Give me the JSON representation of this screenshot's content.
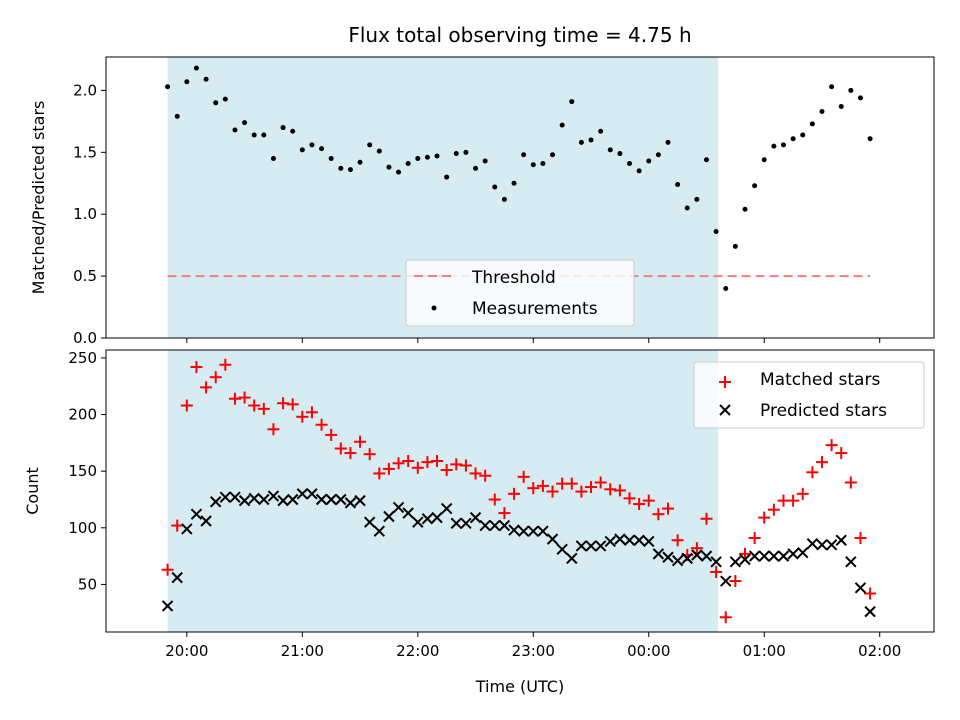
{
  "colors": {
    "span": "#add8e6",
    "threshold": "#f08080",
    "matched": "#ff0000",
    "predicted": "#000000",
    "measurement": "#000000"
  },
  "chart_data": [
    {
      "type": "scatter",
      "title": "Flux total observing time = 4.75 h",
      "xlabel": "",
      "ylabel": "Matched/Predicted stars",
      "x_unit": "hours from 19:50 UTC",
      "xlim": [
        19.3,
        26.47
      ],
      "ylim": [
        0.0,
        2.27
      ],
      "yticks": [
        "0.0",
        "0.5",
        "1.0",
        "1.5",
        "2.0"
      ],
      "shaded_span": [
        "19:50",
        "00:36"
      ],
      "threshold": 0.5,
      "legend": {
        "position": "lower-center",
        "entries": [
          "Threshold",
          "Measurements"
        ]
      },
      "series": [
        {
          "name": "Measurements",
          "marker": "dot",
          "x": [
            "19:50",
            "19:55",
            "20:00",
            "20:05",
            "20:10",
            "20:15",
            "20:20",
            "20:25",
            "20:30",
            "20:35",
            "20:40",
            "20:45",
            "20:50",
            "20:55",
            "21:00",
            "21:05",
            "21:10",
            "21:15",
            "21:20",
            "21:25",
            "21:30",
            "21:35",
            "21:40",
            "21:45",
            "21:50",
            "21:55",
            "22:00",
            "22:05",
            "22:10",
            "22:15",
            "22:20",
            "22:25",
            "22:30",
            "22:35",
            "22:40",
            "22:45",
            "22:50",
            "22:55",
            "23:00",
            "23:05",
            "23:10",
            "23:15",
            "23:20",
            "23:25",
            "23:30",
            "23:35",
            "23:40",
            "23:45",
            "23:50",
            "23:55",
            "00:00",
            "00:05",
            "00:10",
            "00:15",
            "00:20",
            "00:25",
            "00:30",
            "00:35",
            "00:40",
            "00:45",
            "00:50",
            "00:55",
            "01:00",
            "01:05",
            "01:10",
            "01:15",
            "01:20",
            "01:25",
            "01:30",
            "01:35",
            "01:40",
            "01:45",
            "01:50",
            "01:55"
          ],
          "y": [
            2.03,
            1.79,
            2.07,
            2.18,
            2.09,
            1.9,
            1.93,
            1.68,
            1.74,
            1.64,
            1.64,
            1.45,
            1.7,
            1.67,
            1.52,
            1.56,
            1.53,
            1.45,
            1.37,
            1.36,
            1.42,
            1.56,
            1.51,
            1.38,
            1.34,
            1.41,
            1.45,
            1.46,
            1.47,
            1.3,
            1.49,
            1.5,
            1.37,
            1.43,
            1.22,
            1.12,
            1.25,
            1.48,
            1.4,
            1.41,
            1.48,
            1.72,
            1.91,
            1.58,
            1.6,
            1.67,
            1.52,
            1.49,
            1.41,
            1.35,
            1.43,
            1.48,
            1.58,
            1.24,
            1.05,
            1.12,
            1.44,
            0.86,
            0.4,
            0.74,
            1.04,
            1.23,
            1.44,
            1.55,
            1.56,
            1.61,
            1.64,
            1.73,
            1.83,
            2.03,
            1.87,
            2.0,
            1.94,
            1.61
          ]
        }
      ]
    },
    {
      "type": "scatter",
      "title": "",
      "xlabel": "Time (UTC)",
      "ylabel": "Count",
      "xlim": [
        19.3,
        26.47
      ],
      "ylim": [
        8,
        257
      ],
      "yticks": [
        "50",
        "100",
        "150",
        "200",
        "250"
      ],
      "xticks": [
        "20:00",
        "21:00",
        "22:00",
        "23:00",
        "00:00",
        "01:00",
        "02:00"
      ],
      "shaded_span": [
        "19:50",
        "00:36"
      ],
      "legend": {
        "position": "top-right",
        "entries": [
          "Matched stars",
          "Predicted stars"
        ]
      },
      "series": [
        {
          "name": "Matched stars",
          "marker": "plus",
          "x": [
            "19:50",
            "19:55",
            "20:00",
            "20:05",
            "20:10",
            "20:15",
            "20:20",
            "20:25",
            "20:30",
            "20:35",
            "20:40",
            "20:45",
            "20:50",
            "20:55",
            "21:00",
            "21:05",
            "21:10",
            "21:15",
            "21:20",
            "21:25",
            "21:30",
            "21:35",
            "21:40",
            "21:45",
            "21:50",
            "21:55",
            "22:00",
            "22:05",
            "22:10",
            "22:15",
            "22:20",
            "22:25",
            "22:30",
            "22:35",
            "22:40",
            "22:45",
            "22:50",
            "22:55",
            "23:00",
            "23:05",
            "23:10",
            "23:15",
            "23:20",
            "23:25",
            "23:30",
            "23:35",
            "23:40",
            "23:45",
            "23:50",
            "23:55",
            "00:00",
            "00:05",
            "00:10",
            "00:15",
            "00:20",
            "00:25",
            "00:30",
            "00:35",
            "00:40",
            "00:45",
            "00:50",
            "00:55",
            "01:00",
            "01:05",
            "01:10",
            "01:15",
            "01:20",
            "01:25",
            "01:30",
            "01:35",
            "01:40",
            "01:45",
            "01:50",
            "01:55"
          ],
          "y": [
            63,
            102,
            208,
            242,
            224,
            233,
            244,
            214,
            215,
            208,
            205,
            187,
            210,
            209,
            198,
            202,
            191,
            182,
            170,
            166,
            176,
            165,
            148,
            152,
            157,
            159,
            153,
            158,
            159,
            151,
            156,
            155,
            148,
            146,
            125,
            113,
            130,
            145,
            135,
            137,
            132,
            139,
            139,
            132,
            136,
            140,
            134,
            133,
            126,
            121,
            124,
            112,
            117,
            89,
            76,
            82,
            108,
            61,
            21,
            53,
            77,
            91,
            109,
            116,
            124,
            124,
            130,
            149,
            158,
            173,
            166,
            140,
            91,
            42
          ]
        },
        {
          "name": "Predicted stars",
          "marker": "x",
          "x": [
            "19:50",
            "19:55",
            "20:00",
            "20:05",
            "20:10",
            "20:15",
            "20:20",
            "20:25",
            "20:30",
            "20:35",
            "20:40",
            "20:45",
            "20:50",
            "20:55",
            "21:00",
            "21:05",
            "21:10",
            "21:15",
            "21:20",
            "21:25",
            "21:30",
            "21:35",
            "21:40",
            "21:45",
            "21:50",
            "21:55",
            "22:00",
            "22:05",
            "22:10",
            "22:15",
            "22:20",
            "22:25",
            "22:30",
            "22:35",
            "22:40",
            "22:45",
            "22:50",
            "22:55",
            "23:00",
            "23:05",
            "23:10",
            "23:15",
            "23:20",
            "23:25",
            "23:30",
            "23:35",
            "23:40",
            "23:45",
            "23:50",
            "23:55",
            "00:00",
            "00:05",
            "00:10",
            "00:15",
            "00:20",
            "00:25",
            "00:30",
            "00:35",
            "00:40",
            "00:45",
            "00:50",
            "00:55",
            "01:00",
            "01:05",
            "01:10",
            "01:15",
            "01:20",
            "01:25",
            "01:30",
            "01:35",
            "01:40",
            "01:45",
            "01:50",
            "01:55"
          ],
          "y": [
            31,
            56,
            99,
            112,
            106,
            123,
            127,
            127,
            124,
            126,
            125,
            128,
            124,
            125,
            130,
            130,
            125,
            125,
            125,
            122,
            124,
            105,
            97,
            110,
            118,
            113,
            105,
            108,
            109,
            117,
            104,
            104,
            109,
            102,
            102,
            102,
            98,
            97,
            97,
            97,
            90,
            81,
            73,
            84,
            84,
            84,
            88,
            90,
            89,
            89,
            88,
            77,
            74,
            71,
            73,
            76,
            75,
            70,
            53,
            70,
            72,
            75,
            75,
            75,
            75,
            77,
            78,
            86,
            85,
            85,
            89,
            70,
            47,
            26
          ]
        }
      ]
    }
  ]
}
